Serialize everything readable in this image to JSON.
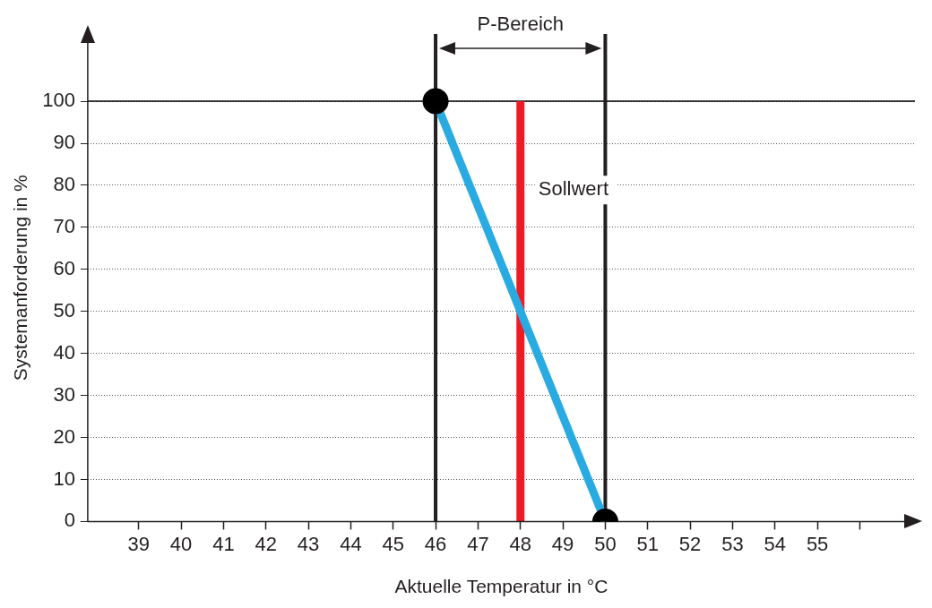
{
  "chart_data": {
    "type": "line",
    "xlabel": "Aktuelle Temperatur in °C",
    "ylabel": "Systemanforderung in %",
    "x": [
      46,
      50
    ],
    "series": [
      {
        "color": "#29abe2",
        "values": [
          100,
          0
        ]
      }
    ],
    "marker": "circle",
    "xlim": [
      37.8,
      57.3
    ],
    "xticks": [
      39,
      40,
      41,
      42,
      43,
      44,
      45,
      46,
      47,
      48,
      49,
      50,
      51,
      52,
      53,
      54,
      55,
      {
        "value": 56,
        "label": null
      }
    ],
    "ylim": [
      0,
      116
    ],
    "yticks": [
      0,
      10,
      20,
      30,
      40,
      50,
      60,
      70,
      80,
      90,
      100
    ],
    "grid": "y",
    "ref_lines": [
      {
        "axis": "y",
        "value": 100,
        "color": "#000000"
      },
      {
        "axis": "x",
        "value": 46,
        "color": "#231f20"
      },
      {
        "axis": "x",
        "value": 50,
        "color": "#231f20"
      },
      {
        "axis": "x",
        "value": 48,
        "color": "#ed1c24",
        "label": "Sollwert"
      }
    ],
    "annotations": [
      "P-Bereich"
    ]
  }
}
